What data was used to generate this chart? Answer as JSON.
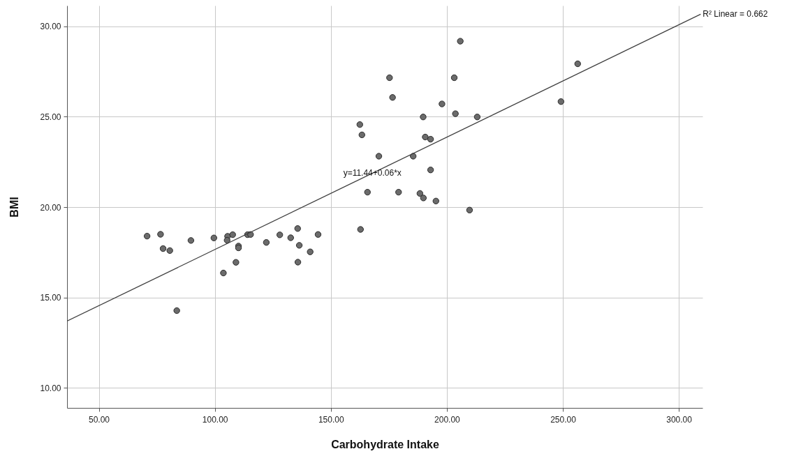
{
  "chart_data": {
    "type": "scatter",
    "xlabel": "Carbohydrate Intake",
    "ylabel": "BMI",
    "xlim": [
      36.3,
      310.2
    ],
    "ylim": [
      8.9,
      31.15
    ],
    "xticks": [
      {
        "value": 50,
        "label": "50.00"
      },
      {
        "value": 100,
        "label": "100.00"
      },
      {
        "value": 150,
        "label": "150.00"
      },
      {
        "value": 200,
        "label": "200.00"
      },
      {
        "value": 250,
        "label": "250.00"
      },
      {
        "value": 300,
        "label": "300.00"
      }
    ],
    "yticks": [
      {
        "value": 10,
        "label": "10.00"
      },
      {
        "value": 15,
        "label": "15.00"
      },
      {
        "value": 20,
        "label": "20.00"
      },
      {
        "value": 25,
        "label": "25.00"
      },
      {
        "value": 30,
        "label": "30.00"
      }
    ],
    "grid": true,
    "series": [
      {
        "marker": "circle",
        "color": "#6b6b6b",
        "x": [
          70.8,
          76.6,
          77.7,
          80.6,
          83.6,
          89.7,
          99.6,
          105.5,
          105.3,
          107.7,
          110.2,
          110.2,
          109.1,
          103.7,
          114.1,
          115.4,
          122.2,
          128.0,
          132.7,
          135.7,
          136.4,
          135.8,
          141.1,
          144.5,
          175.3,
          203.2,
          176.6,
          197.9,
          256.4,
          249.2,
          189.8,
          203.7,
          213.1,
          162.5,
          163.4,
          190.7,
          193.0,
          170.7,
          185.5,
          193.0,
          165.8,
          179.2,
          188.4,
          189.9,
          195.3,
          209.8,
          162.8,
          205.8
        ],
        "values": [
          18.4,
          18.5,
          17.71,
          17.6,
          14.28,
          18.16,
          18.3,
          18.39,
          18.17,
          18.48,
          17.85,
          17.75,
          16.95,
          16.36,
          18.48,
          18.49,
          18.05,
          18.47,
          18.31,
          18.82,
          17.89,
          16.96,
          17.53,
          18.49,
          27.16,
          27.16,
          26.07,
          25.71,
          27.93,
          25.84,
          24.99,
          25.17,
          24.99,
          24.57,
          24.0,
          23.88,
          23.76,
          22.82,
          22.82,
          22.06,
          20.83,
          20.83,
          20.76,
          20.51,
          20.34,
          19.84,
          18.77,
          29.18
        ]
      },
      {
        "type": "line",
        "color": "#404040",
        "x": [
          36.3,
          309.4
        ],
        "values": [
          13.7,
          30.67
        ]
      }
    ],
    "annotations": [
      {
        "text": "R² Linear = 0.662",
        "x": 309.4,
        "y": 30.67
      },
      {
        "text": "y=11.44+0.06*x",
        "x": 167.9,
        "y": 21.9
      }
    ]
  }
}
